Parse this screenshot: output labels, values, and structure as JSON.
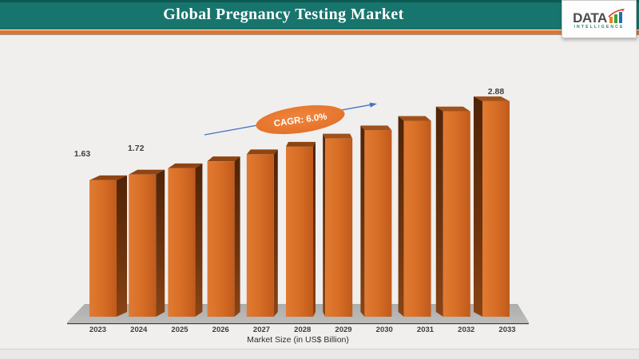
{
  "header": {
    "title": "Global Pregnancy Testing Market",
    "logo": {
      "name": "DATA",
      "tagline": "INTELLIGENCE"
    }
  },
  "chart_data": {
    "type": "bar",
    "title": "Global Pregnancy Testing Market",
    "xlabel": "Market Size (in US$ Billion)",
    "ylabel": "",
    "categories": [
      "2023",
      "2024",
      "2025",
      "2026",
      "2027",
      "2028",
      "2029",
      "2030",
      "2031",
      "2032",
      "2033"
    ],
    "values": [
      1.63,
      1.72,
      1.82,
      1.93,
      2.04,
      2.16,
      2.29,
      2.42,
      2.57,
      2.72,
      2.88
    ],
    "value_labels_shown": [
      "1.63",
      "1.72",
      "",
      "",
      "",
      "",
      "",
      "",
      "",
      "",
      "2.88"
    ],
    "annotation": {
      "label": "CAGR: 6.0%"
    },
    "legend": "none",
    "grid": false,
    "y_axis_shown": false,
    "colors": {
      "bar_front": "#d96f27",
      "bar_side": "#6e340e",
      "bar_top_left_side": "#8f4413",
      "bar_top_right_side": "#a0521a",
      "floor": "#b3b3b3",
      "annotation_fill": "#ed7d31",
      "annotation_text": "#ffffff",
      "trend_arrow": "#4472c4",
      "banner_teal": "#17756d",
      "stripe_orange": "#e0752d",
      "label_text": "#3c3c3c"
    }
  }
}
